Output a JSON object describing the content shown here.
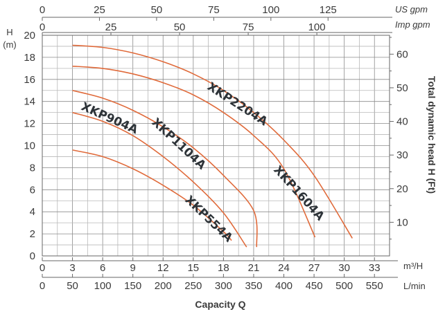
{
  "chart_data": {
    "type": "line",
    "title": "",
    "xlabel": "Capacity Q",
    "ylabel_left": "H",
    "ylabel_left_unit": "(m)",
    "ylabel_right": "Total dynamic head H (Ft)",
    "x_axis_m3h": {
      "unit": "m³/H",
      "range": [
        0,
        34.5
      ],
      "ticks": [
        "0",
        "3",
        "6",
        "9",
        "12",
        "15",
        "18",
        "21",
        "24",
        "27",
        "30",
        "33"
      ]
    },
    "x_axis_lmin": {
      "unit": "L/min",
      "ticks": [
        "0",
        "50",
        "100",
        "150",
        "200",
        "250",
        "300",
        "350",
        "400",
        "450",
        "500",
        "550"
      ]
    },
    "x_axis_usgpm": {
      "unit": "US gpm",
      "ticks": [
        "0",
        "25",
        "50",
        "75",
        "100",
        "125"
      ]
    },
    "x_axis_impgpm": {
      "unit": "Imp gpm",
      "ticks": [
        "0",
        "25",
        "50",
        "75",
        "100"
      ]
    },
    "y_axis_m": {
      "range": [
        0,
        20
      ],
      "ticks": [
        "0",
        "2",
        "4",
        "6",
        "8",
        "10",
        "12",
        "14",
        "16",
        "18",
        "20"
      ]
    },
    "y_axis_ft": {
      "ticks": [
        "10",
        "20",
        "30",
        "40",
        "50",
        "60"
      ]
    },
    "series": [
      {
        "name": "XKP554A",
        "x": [
          3,
          6,
          9,
          12,
          15,
          18,
          18.8
        ],
        "y": [
          9.6,
          9.0,
          7.9,
          6.4,
          4.6,
          2.2,
          1.4
        ]
      },
      {
        "name": "XKP904A",
        "x": [
          3,
          6,
          9,
          12,
          15,
          18,
          20.3
        ],
        "y": [
          13.0,
          12.2,
          10.9,
          9.0,
          6.7,
          3.9,
          0.8
        ]
      },
      {
        "name": "XKP1104A",
        "x": [
          3,
          6,
          9,
          12,
          15,
          18,
          21,
          21.3
        ],
        "y": [
          15.0,
          14.3,
          13.2,
          11.7,
          9.8,
          7.3,
          4.1,
          0.8
        ]
      },
      {
        "name": "XKP1604A",
        "x": [
          3,
          6,
          9,
          12,
          15,
          18,
          21,
          24,
          27.1
        ],
        "y": [
          17.2,
          17.0,
          16.5,
          15.7,
          14.6,
          13.0,
          10.9,
          7.9,
          1.7
        ]
      },
      {
        "name": "XKP2204A",
        "x": [
          3,
          6,
          9,
          12,
          15,
          18,
          21,
          24,
          27,
          30.8
        ],
        "y": [
          19.1,
          18.9,
          18.4,
          17.6,
          16.5,
          15.0,
          13.0,
          10.5,
          7.3,
          1.6
        ]
      }
    ],
    "series_color": "#e06a3a",
    "grid": true
  }
}
